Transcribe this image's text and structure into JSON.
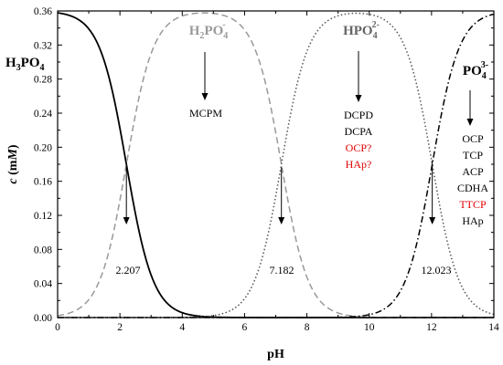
{
  "chart_data": {
    "type": "line",
    "xlabel": "pH",
    "ylabel": {
      "base": "c",
      "unit_open": " (m",
      "unit_italic": "M",
      "unit_close": ")"
    },
    "xlim": [
      0,
      14
    ],
    "ylim": [
      0,
      0.36
    ],
    "xticks": [
      0,
      2,
      4,
      6,
      8,
      10,
      12,
      14
    ],
    "yticks": [
      0.0,
      0.04,
      0.08,
      0.12,
      0.16,
      0.2,
      0.24,
      0.28,
      0.32,
      0.36
    ],
    "grid": false,
    "total_concentration": 0.36,
    "pKa": [
      2.207,
      7.182,
      12.023
    ],
    "series": [
      {
        "species": "H3PO4",
        "style": "solid",
        "color": "#000000"
      },
      {
        "species": "H2PO4-",
        "style": "dashed",
        "color": "#999999"
      },
      {
        "species": "HPO42-",
        "style": "dotted",
        "color": "#555555"
      },
      {
        "species": "PO43-",
        "style": "dashdot",
        "color": "#000000"
      }
    ],
    "species_labels": [
      {
        "id": "h3po4",
        "parts": [
          "H",
          "3",
          "PO",
          "4"
        ],
        "charge": "",
        "color": "#000000"
      },
      {
        "id": "h2po4",
        "parts": [
          "H",
          "2",
          "PO",
          "4"
        ],
        "charge": "-",
        "color": "#999999"
      },
      {
        "id": "hpo4",
        "parts": [
          "HPO",
          "4"
        ],
        "charge": "2-",
        "color": "#666666"
      },
      {
        "id": "po4",
        "parts": [
          "PO",
          "4"
        ],
        "charge": "3-",
        "color": "#000000"
      }
    ],
    "phase_groups": [
      {
        "id": "h2po4",
        "items": [
          {
            "text": "MCPM",
            "color": "#000000"
          }
        ]
      },
      {
        "id": "hpo4",
        "items": [
          {
            "text": "DCPD",
            "color": "#000000"
          },
          {
            "text": "DCPA",
            "color": "#000000"
          },
          {
            "text": "OCP?",
            "color": "#e00000"
          },
          {
            "text": "HAp?",
            "color": "#e00000"
          }
        ]
      },
      {
        "id": "po4",
        "items": [
          {
            "text": "OCP",
            "color": "#000000"
          },
          {
            "text": "TCP",
            "color": "#000000"
          },
          {
            "text": "ACP",
            "color": "#000000"
          },
          {
            "text": "CDHA",
            "color": "#000000"
          },
          {
            "text": "TTCP",
            "color": "#e00000"
          },
          {
            "text": "HAp",
            "color": "#000000"
          }
        ]
      }
    ],
    "annotations": [
      {
        "text": "2.207",
        "x": 2.207
      },
      {
        "text": "7.182",
        "x": 7.182
      },
      {
        "text": "12.023",
        "x": 12.023
      }
    ]
  }
}
